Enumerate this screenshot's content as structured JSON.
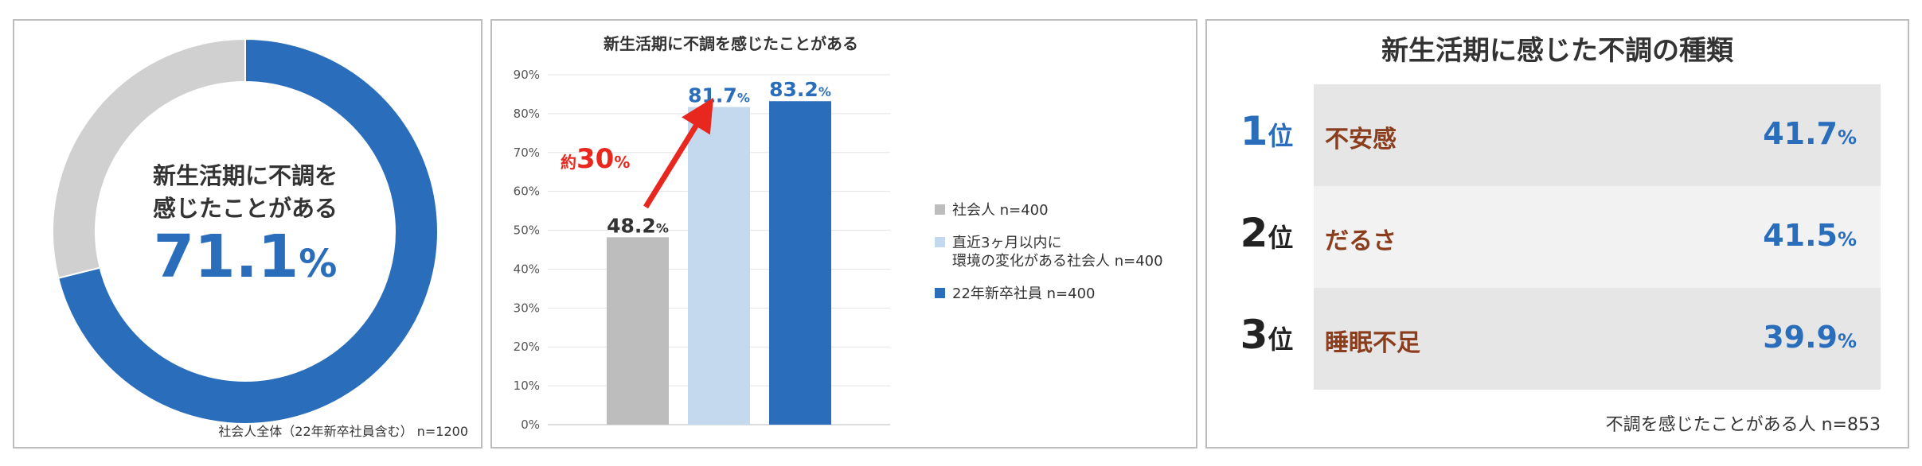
{
  "chart_data": [
    {
      "type": "pie",
      "title_lines": [
        "新生活期に不調を",
        "感じたことがある"
      ],
      "center_value": "71.1",
      "center_unit": "%",
      "slices": [
        {
          "label": "不調を感じたことがある",
          "value": 71.1,
          "color": "#2a6ebb"
        },
        {
          "label": "",
          "value": 28.9,
          "color": "#d0d0d0"
        }
      ],
      "note": "社会人全体（22年新卒社員含む） n=1200"
    },
    {
      "type": "bar",
      "title": "新生活期に不調を感じたことがある",
      "categories": [
        "社会人 n=400",
        "直近3ヶ月以内に 環境の変化がある社会人 n=400",
        "22年新卒社員 n=400"
      ],
      "values": [
        48.2,
        81.7,
        83.2
      ],
      "value_labels": [
        "48.2",
        "81.7",
        "83.2"
      ],
      "value_unit": "%",
      "colors": [
        "#bdbdbd",
        "#c5d9ee",
        "#2a6ebb"
      ],
      "label_colors": [
        "#333333",
        "#2a6ebb",
        "#2a6ebb"
      ],
      "ylim": [
        0,
        90
      ],
      "yticks": [
        "0%",
        "10%",
        "20%",
        "30%",
        "40%",
        "50%",
        "60%",
        "70%",
        "80%",
        "90%"
      ],
      "legend": [
        {
          "lines": [
            "社会人 n=400"
          ],
          "color": "#bdbdbd"
        },
        {
          "lines": [
            "直近3ヶ月以内に",
            "環境の変化がある社会人 n=400"
          ],
          "color": "#c5d9ee"
        },
        {
          "lines": [
            "22年新卒社員 n=400"
          ],
          "color": "#2a6ebb"
        }
      ],
      "annotation": {
        "prefix": "約",
        "value": "30",
        "unit": "%",
        "color": "#e8281e"
      }
    },
    {
      "type": "table",
      "title": "新生活期に感じた不調の種類",
      "rank_unit": "位",
      "rows": [
        {
          "rank": "1",
          "item": "不安感",
          "value": "41.7",
          "unit": "%"
        },
        {
          "rank": "2",
          "item": "だるさ",
          "value": "41.5",
          "unit": "%"
        },
        {
          "rank": "3",
          "item": "睡眠不足",
          "value": "39.9",
          "unit": "%"
        }
      ],
      "note": "不調を感じたことがある人 n=853",
      "rank_colors": [
        "#2a6ebb",
        "#222222",
        "#222222"
      ],
      "row_colors": [
        "#e6e6e6",
        "#f2f2f2",
        "#e6e6e6"
      ]
    }
  ]
}
